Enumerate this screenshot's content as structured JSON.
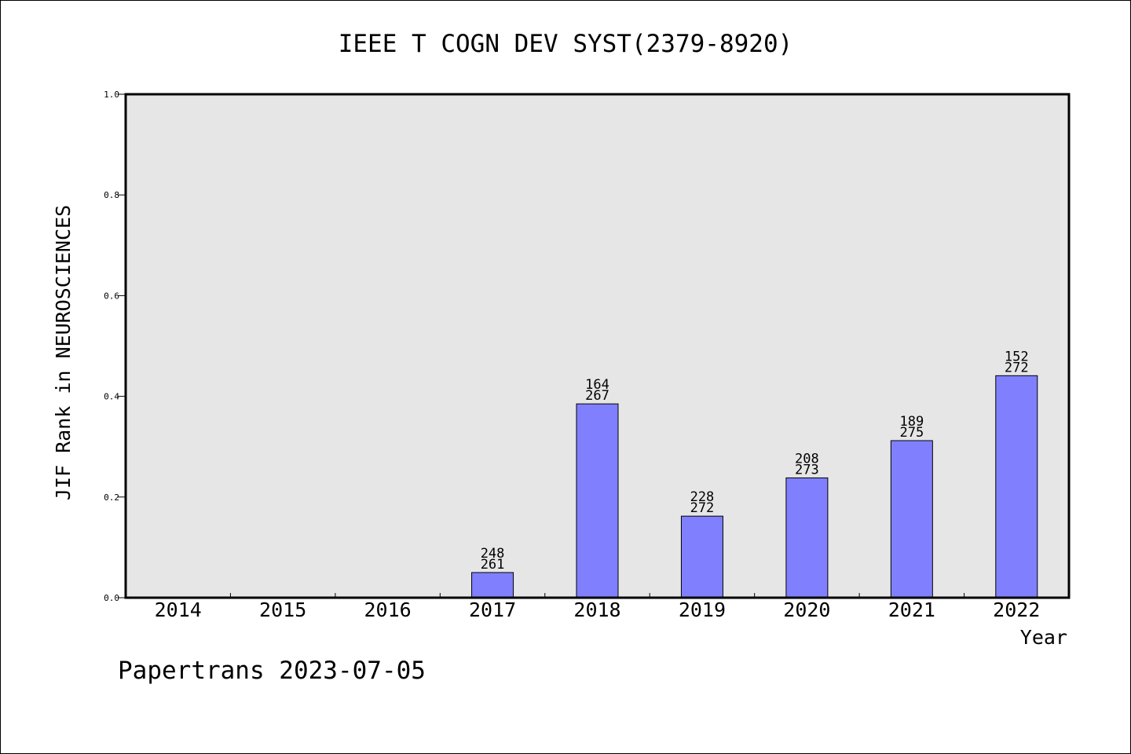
{
  "chart_data": {
    "type": "bar",
    "title": "IEEE T COGN DEV SYST(2379-8920)",
    "xlabel": "Year",
    "ylabel": "JIF Rank in NEUROSCIENCES",
    "ylim": [
      0,
      1.0
    ],
    "yticks": [
      "0.0",
      "0.2",
      "0.4",
      "0.6",
      "0.8",
      "1.0"
    ],
    "categories": [
      "2014",
      "2015",
      "2016",
      "2017",
      "2018",
      "2019",
      "2020",
      "2021",
      "2022"
    ],
    "values": [
      null,
      null,
      null,
      0.05,
      0.385,
      0.162,
      0.238,
      0.312,
      0.441
    ],
    "rank_labels": [
      null,
      null,
      null,
      {
        "rank": "248",
        "total": "261"
      },
      {
        "rank": "164",
        "total": "267"
      },
      {
        "rank": "228",
        "total": "272"
      },
      {
        "rank": "208",
        "total": "273"
      },
      {
        "rank": "189",
        "total": "275"
      },
      {
        "rank": "152",
        "total": "272"
      }
    ],
    "grid": false,
    "bar_color": "#8080ff",
    "plot_background": "#e6e6e6"
  },
  "footer": "Papertrans 2023-07-05"
}
